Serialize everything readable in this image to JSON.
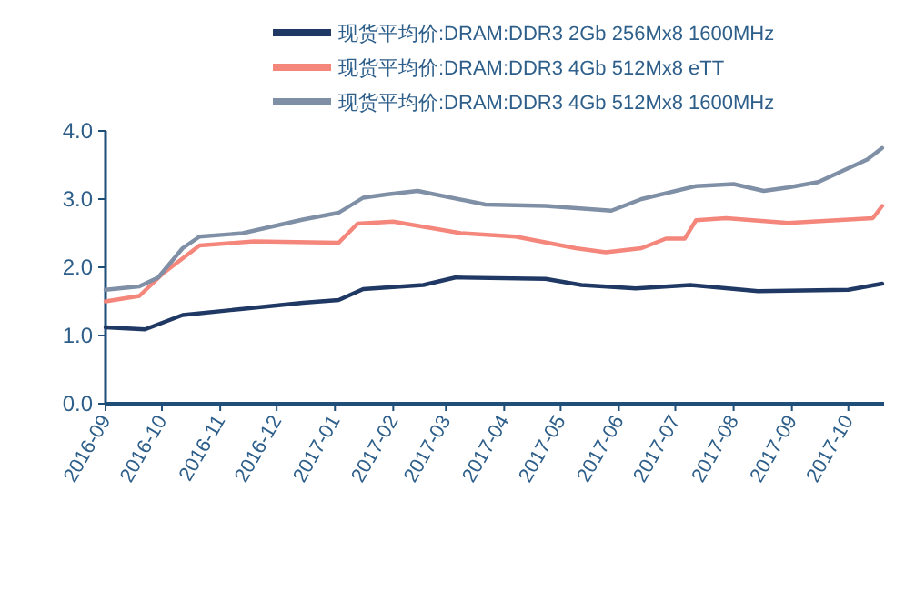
{
  "chart_data": {
    "type": "line",
    "legend": "top",
    "grid": false,
    "marker": "none",
    "line_style": "solid",
    "xlim": [
      "2016-09-01",
      "2017-10-20"
    ],
    "xticks": [
      "2016-09",
      "2016-10",
      "2016-11",
      "2016-12",
      "2017-01",
      "2017-02",
      "2017-03",
      "2017-04",
      "2017-05",
      "2017-06",
      "2017-07",
      "2017-08",
      "2017-09",
      "2017-10"
    ],
    "ylim": [
      0,
      4
    ],
    "yticks": [
      {
        "value": 0,
        "label": "0.0"
      },
      {
        "value": 1,
        "label": "1.0"
      },
      {
        "value": 2,
        "label": "2.0"
      },
      {
        "value": 3,
        "label": "3.0"
      },
      {
        "value": 4,
        "label": "4.0"
      }
    ],
    "series": [
      {
        "name": "现货平均价:DRAM:DDR3 2Gb 256Mx8 1600MHz",
        "color": "#1f3864",
        "x": [
          "2016-09-01",
          "2016-09-22",
          "2016-10-12",
          "2016-11-13",
          "2016-12-15",
          "2017-01-03",
          "2017-01-16",
          "2017-02-17",
          "2017-03-06",
          "2017-04-23",
          "2017-05-12",
          "2017-06-10",
          "2017-07-09",
          "2017-08-14",
          "2017-10-01",
          "2017-10-19"
        ],
        "values": [
          1.12,
          1.09,
          1.3,
          1.39,
          1.48,
          1.52,
          1.68,
          1.74,
          1.85,
          1.83,
          1.74,
          1.69,
          1.74,
          1.65,
          1.67,
          1.76
        ]
      },
      {
        "name": "现货平均价:DRAM:DDR3 4Gb 512Mx8 eTT",
        "color": "#f4867c",
        "x": [
          "2016-09-01",
          "2016-09-19",
          "2016-10-02",
          "2016-10-21",
          "2016-11-19",
          "2017-01-03",
          "2017-01-13",
          "2017-02-01",
          "2017-03-09",
          "2017-04-07",
          "2017-05-09",
          "2017-05-25",
          "2017-06-13",
          "2017-06-26",
          "2017-07-06",
          "2017-07-12",
          "2017-07-28",
          "2017-08-30",
          "2017-10-14",
          "2017-10-19"
        ],
        "values": [
          1.5,
          1.58,
          1.92,
          2.32,
          2.38,
          2.36,
          2.64,
          2.67,
          2.5,
          2.45,
          2.28,
          2.22,
          2.28,
          2.42,
          2.42,
          2.69,
          2.72,
          2.65,
          2.72,
          2.9
        ]
      },
      {
        "name": "现货平均价:DRAM:DDR3 4Gb 512Mx8 1600MHz",
        "color": "#7f8fa6",
        "x": [
          "2016-09-01",
          "2016-09-19",
          "2016-09-29",
          "2016-10-12",
          "2016-10-21",
          "2016-11-13",
          "2016-12-15",
          "2017-01-03",
          "2017-01-16",
          "2017-01-29",
          "2017-02-14",
          "2017-03-22",
          "2017-04-23",
          "2017-05-28",
          "2017-06-13",
          "2017-07-12",
          "2017-08-01",
          "2017-08-17",
          "2017-08-30",
          "2017-09-15",
          "2017-10-11",
          "2017-10-19"
        ],
        "values": [
          1.67,
          1.72,
          1.85,
          2.28,
          2.45,
          2.5,
          2.7,
          2.8,
          3.02,
          3.07,
          3.12,
          2.92,
          2.9,
          2.83,
          3.0,
          3.19,
          3.22,
          3.12,
          3.17,
          3.25,
          3.58,
          3.75
        ]
      }
    ]
  }
}
